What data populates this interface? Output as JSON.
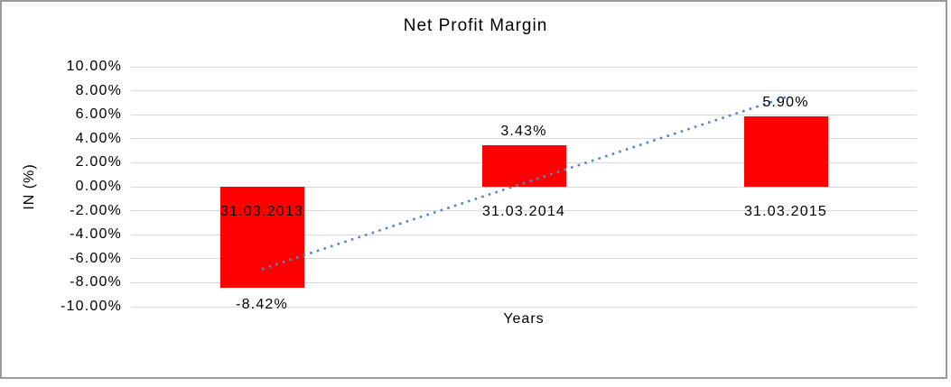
{
  "window": {
    "background_color": "#ffffff",
    "frame_border_color": "#9b9b9b"
  },
  "chart_data": {
    "type": "bar",
    "title": "Net Profit Margin",
    "xlabel": "Years",
    "ylabel": "IN (%)",
    "categories": [
      "31.03.2013",
      "31.03.2014",
      "31.03.2015"
    ],
    "values": [
      -8.42,
      3.43,
      5.9
    ],
    "data_labels": [
      "-8.42%",
      "3.43%",
      "5.90%"
    ],
    "category_label_position": "below-zero-axis",
    "bar_color": "#ff0000",
    "ylim": [
      -10,
      10
    ],
    "y_tick_step": 2,
    "y_tick_labels": [
      "10.00%",
      "8.00%",
      "6.00%",
      "4.00%",
      "2.00%",
      "0.00%",
      "-2.00%",
      "-4.00%",
      "-6.00%",
      "-8.00%",
      "-10.00%"
    ],
    "grid": true,
    "gridline_color": "#d9d9d9",
    "legend": "none",
    "trendline": {
      "style": "dotted",
      "color": "#5585c8",
      "start": {
        "category_index": 0,
        "value": -6.86
      },
      "end": {
        "category_index": 2,
        "value": 7.46
      }
    }
  }
}
